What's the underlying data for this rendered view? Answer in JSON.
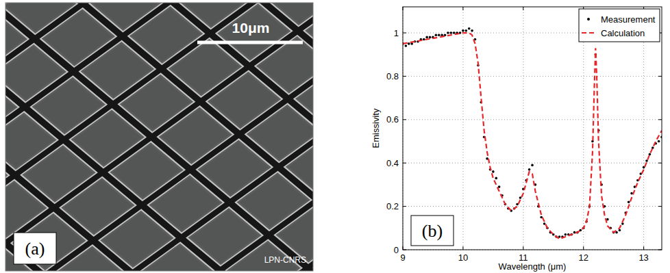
{
  "image_panel": {
    "label": "(a)",
    "scale_bar": "10μm",
    "credit": "LPN-CNRS"
  },
  "chart_data": {
    "type": "line",
    "panel_label": "(b)",
    "x_label": "Wavelength (μm)",
    "y_label": "Emissivity",
    "xlim": [
      9,
      13.3
    ],
    "ylim": [
      0,
      1.12
    ],
    "xticks": [
      9,
      10,
      11,
      12,
      13
    ],
    "yticks": [
      0,
      0.2,
      0.4,
      0.6,
      0.8,
      1
    ],
    "grid": true,
    "legend": "top-right",
    "series": [
      {
        "name": "Measurement",
        "color": "#000000",
        "type": "scatter",
        "marker": "dot",
        "x": [
          9.0,
          9.05,
          9.1,
          9.15,
          9.2,
          9.25,
          9.3,
          9.35,
          9.4,
          9.45,
          9.5,
          9.55,
          9.6,
          9.65,
          9.7,
          9.75,
          9.8,
          9.85,
          9.9,
          9.95,
          10.0,
          10.05,
          10.1,
          10.15,
          10.2,
          10.25,
          10.3,
          10.35,
          10.4,
          10.45,
          10.5,
          10.55,
          10.6,
          10.65,
          10.7,
          10.75,
          10.8,
          10.85,
          10.9,
          10.95,
          11.0,
          11.05,
          11.1,
          11.15,
          11.2,
          11.25,
          11.3,
          11.35,
          11.4,
          11.45,
          11.5,
          11.55,
          11.6,
          11.65,
          11.7,
          11.75,
          11.8,
          11.85,
          11.9,
          11.95,
          12.0,
          12.05,
          12.1,
          12.15,
          12.2,
          12.25,
          12.3,
          12.35,
          12.4,
          12.45,
          12.5,
          12.55,
          12.6,
          12.65,
          12.7,
          12.75,
          12.8,
          12.85,
          12.9,
          12.95,
          13.0,
          13.05,
          13.1,
          13.15,
          13.2,
          13.25,
          13.3
        ],
        "values": [
          0.95,
          0.94,
          0.95,
          0.95,
          0.96,
          0.96,
          0.97,
          0.97,
          0.98,
          0.98,
          0.98,
          0.99,
          0.99,
          0.99,
          0.99,
          1.0,
          1.0,
          1.0,
          1.0,
          1.0,
          1.01,
          1.01,
          1.02,
          1.01,
          0.97,
          0.85,
          0.68,
          0.52,
          0.42,
          0.37,
          0.36,
          0.33,
          0.29,
          0.25,
          0.21,
          0.19,
          0.18,
          0.19,
          0.21,
          0.24,
          0.28,
          0.32,
          0.37,
          0.39,
          0.3,
          0.2,
          0.15,
          0.12,
          0.1,
          0.08,
          0.07,
          0.06,
          0.06,
          0.06,
          0.07,
          0.07,
          0.07,
          0.08,
          0.08,
          0.09,
          0.1,
          0.13,
          0.2,
          0.5,
          0.9,
          0.55,
          0.3,
          0.2,
          0.14,
          0.1,
          0.08,
          0.08,
          0.09,
          0.12,
          0.17,
          0.22,
          0.26,
          0.29,
          0.32,
          0.35,
          0.38,
          0.41,
          0.44,
          0.47,
          0.49,
          0.5,
          0.52
        ]
      },
      {
        "name": "Calculation",
        "color": "#e8262a",
        "type": "line",
        "line_style": "dashed",
        "x": [
          9.0,
          9.2,
          9.4,
          9.6,
          9.8,
          10.0,
          10.1,
          10.15,
          10.2,
          10.25,
          10.3,
          10.35,
          10.4,
          10.45,
          10.5,
          10.6,
          10.7,
          10.8,
          10.9,
          11.0,
          11.05,
          11.1,
          11.15,
          11.2,
          11.3,
          11.4,
          11.5,
          11.6,
          11.7,
          11.8,
          11.9,
          12.0,
          12.05,
          12.1,
          12.15,
          12.18,
          12.2,
          12.22,
          12.25,
          12.3,
          12.35,
          12.4,
          12.5,
          12.6,
          12.7,
          12.8,
          12.9,
          13.0,
          13.1,
          13.2,
          13.3
        ],
        "values": [
          0.95,
          0.96,
          0.97,
          0.98,
          0.99,
          1.0,
          1.0,
          0.99,
          0.95,
          0.86,
          0.7,
          0.55,
          0.45,
          0.38,
          0.33,
          0.27,
          0.21,
          0.18,
          0.2,
          0.26,
          0.31,
          0.36,
          0.35,
          0.27,
          0.16,
          0.1,
          0.07,
          0.05,
          0.06,
          0.07,
          0.08,
          0.1,
          0.13,
          0.2,
          0.45,
          0.75,
          0.93,
          0.8,
          0.5,
          0.25,
          0.16,
          0.11,
          0.08,
          0.1,
          0.16,
          0.24,
          0.31,
          0.37,
          0.44,
          0.5,
          0.55
        ]
      }
    ]
  }
}
